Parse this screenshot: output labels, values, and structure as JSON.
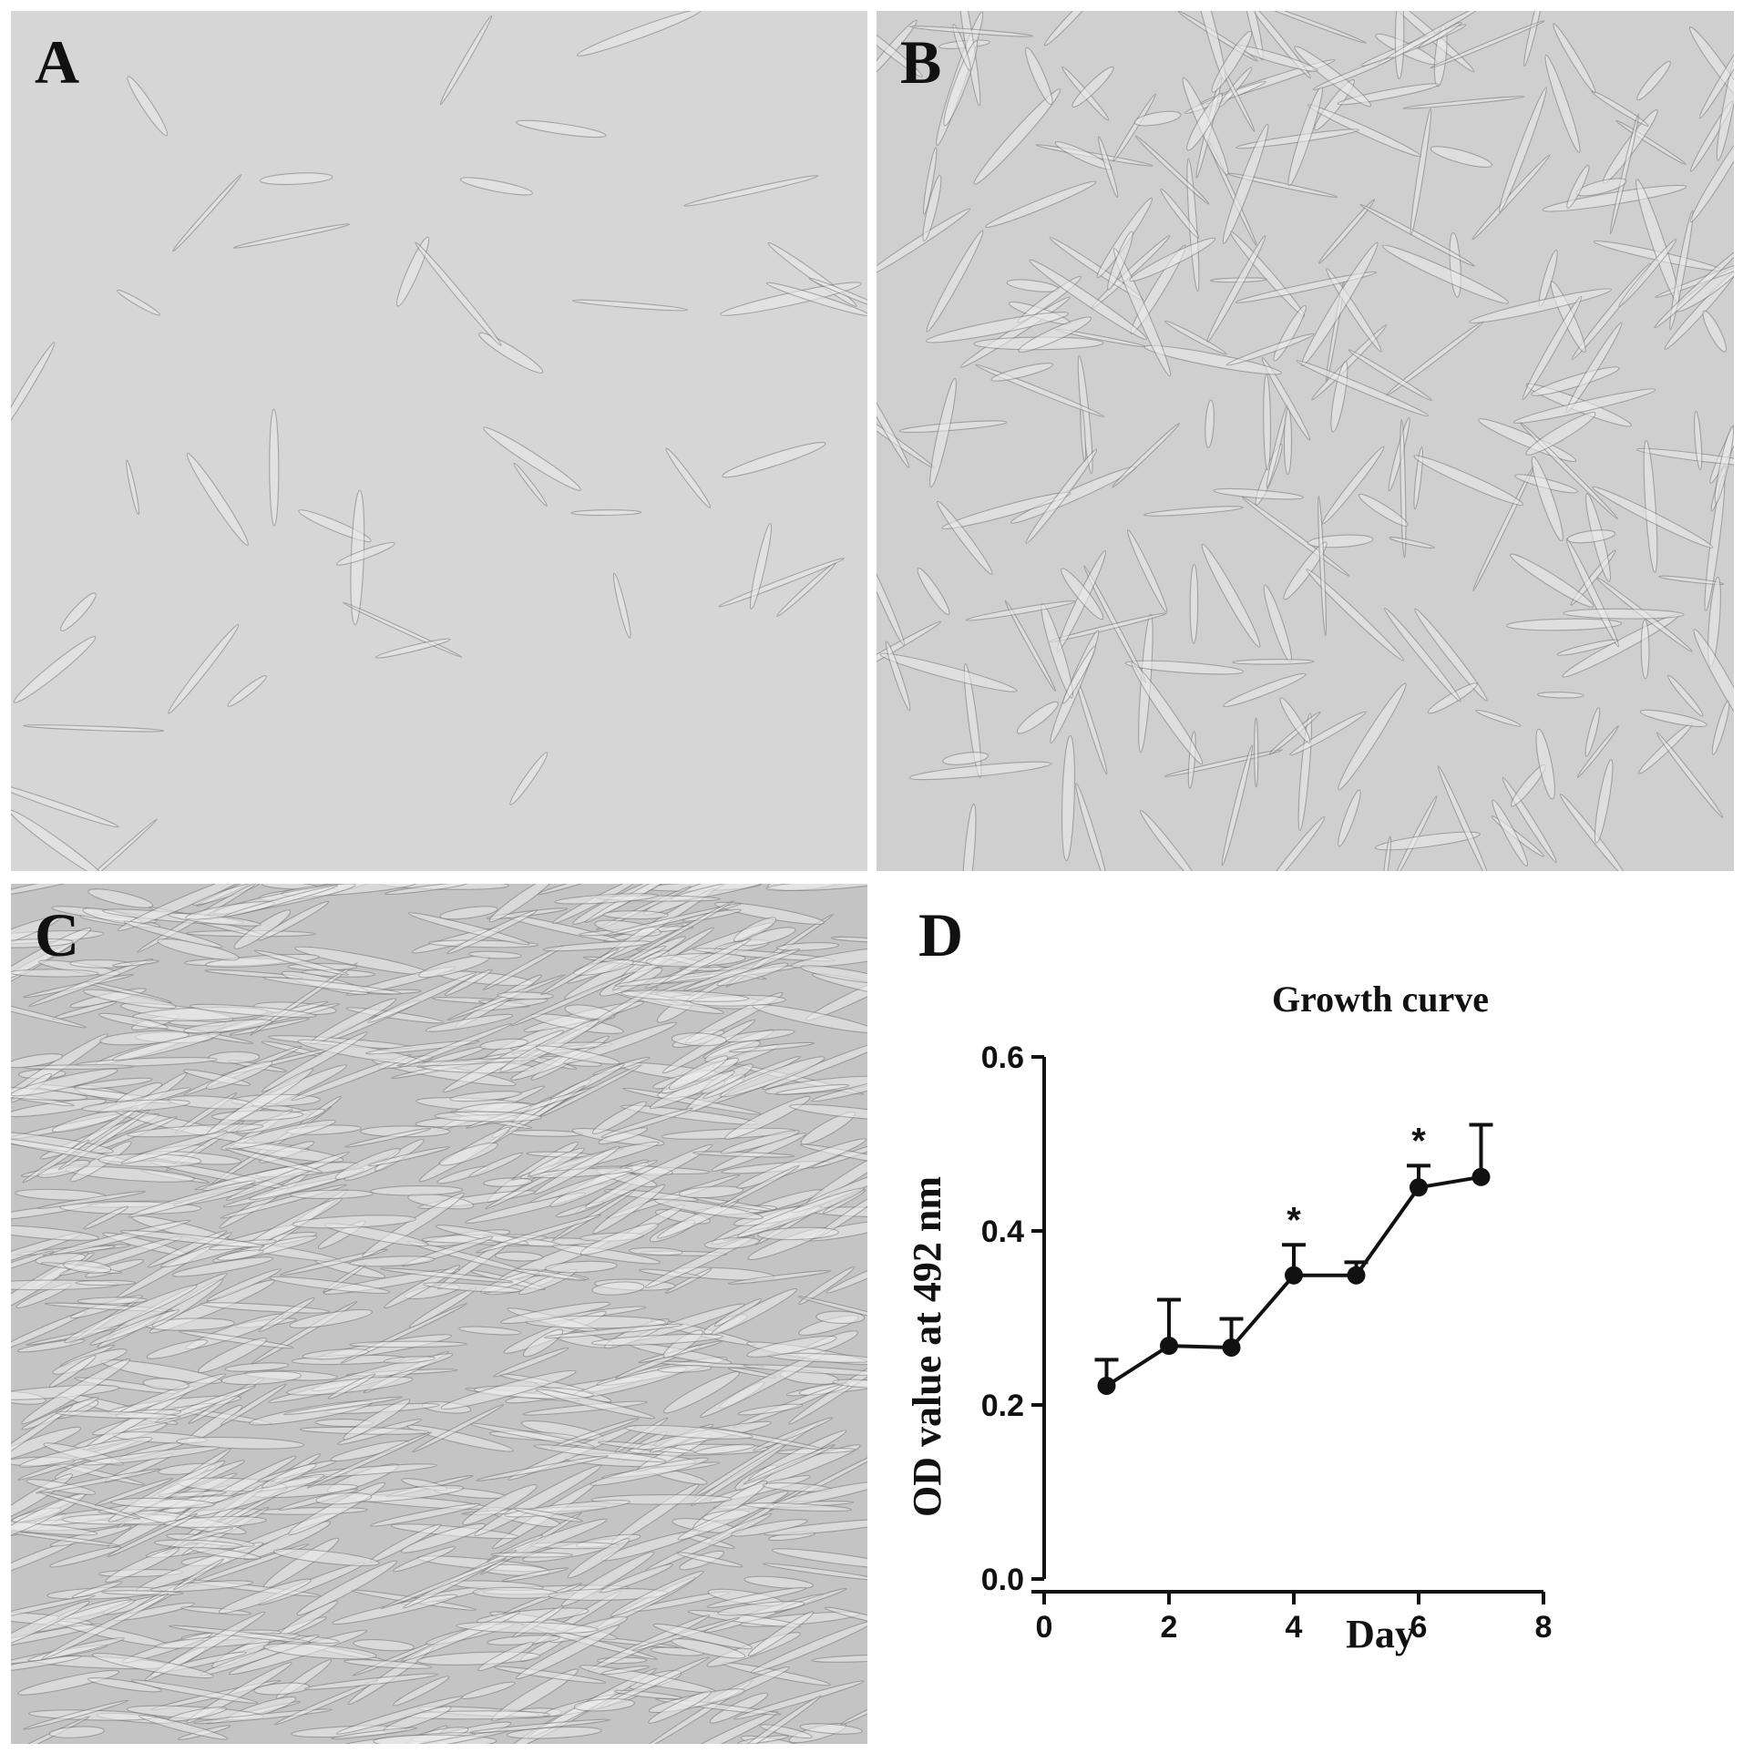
{
  "panels": [
    {
      "label": "A",
      "description": "sparse spindle-shaped cells",
      "density": 45,
      "tone": "#d6d6d6"
    },
    {
      "label": "B",
      "description": "sub-confluent spindle-shaped cells",
      "density": 260,
      "tone": "#cfcfcf"
    },
    {
      "label": "C",
      "description": "confluent fibroblast-like cells",
      "density": 900,
      "tone": "#c4c4c4"
    },
    {
      "label": "D"
    }
  ],
  "chart_data": {
    "type": "line",
    "title": "Growth curve",
    "xlabel": "Day",
    "ylabel": "OD value at 492 nm",
    "xlim": [
      0,
      8
    ],
    "ylim": [
      0.0,
      0.6
    ],
    "xticks": [
      "0",
      "2",
      "4",
      "6",
      "8"
    ],
    "yticks": [
      "0.0",
      "0.2",
      "0.4",
      "0.6"
    ],
    "x": [
      1,
      2,
      3,
      4,
      5,
      6,
      7
    ],
    "series": [
      {
        "values": [
          0.222,
          0.268,
          0.266,
          0.349,
          0.349,
          0.45,
          0.462
        ],
        "error_upper": [
          0.03,
          0.053,
          0.033,
          0.035,
          0.015,
          0.025,
          0.06
        ]
      }
    ],
    "annotations": [
      {
        "text": "*",
        "x": 4
      },
      {
        "text": "*",
        "x": 6
      }
    ],
    "grid": false
  }
}
